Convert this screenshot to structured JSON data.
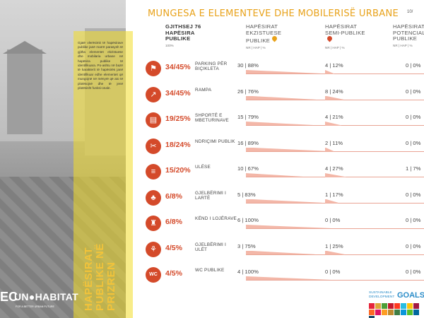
{
  "page_number": "10/",
  "title": "MUNGESA E ELEMENTEVE DHE MOBILERISË URBANE",
  "left_panel": {
    "description": "Gjatë vlerësimit të hapësirave publike janë marrë parasysh të gjitha elementet ekzistuese dhe mobilaria urbane në hapësira publike të identifikuara. Po-ashtu në bazë të karakterit të hapësirës janë identifikuar edhe elementet që mungojnë në mënyrë që ato të plotësojnë dhe të jenë plotësisht funksi-onale.",
    "vertical_title": "HAPËSIRAT PUBLIKE NË PRIZREN",
    "logo_ec": "EC",
    "logo_un": "UN●HABITAT",
    "logo_sub": "FOR A BETTER URBAN FUTURE"
  },
  "columns": [
    {
      "title": "GJITHSEJ 76 HAPËSIRA PUBLIKE",
      "sub": "100%"
    },
    {
      "title": "HAPËSIRAT EKZISTUESE PUBLIKE",
      "sub": "NR | HAP | %",
      "pin_color": "#e8a21a"
    },
    {
      "title": "HAPËSIRAT SEMI-PUBLIKE",
      "sub": "NR | HAP | %",
      "pin_color": "#d44a2a"
    },
    {
      "title": "HAPËSIRAT POTENCIALE PUBLIKE",
      "sub": "NR | HAP | %",
      "pin_color": "#2aa0c8"
    }
  ],
  "rows": [
    {
      "icon": "bicycle-icon",
      "glyph": "⚑",
      "fraction": "34/45%",
      "label": "PARKING PËR BIÇIKLETA",
      "existing": "30 | 88%",
      "semi": "4 | 12%",
      "potential": "0 | 0%",
      "existing_pct": 88,
      "semi_pct": 12
    },
    {
      "icon": "ramp-icon",
      "glyph": "↗",
      "fraction": "34/45%",
      "label": "RAMPA",
      "existing": "26 | 76%",
      "semi": "8 | 24%",
      "potential": "0 | 0%",
      "existing_pct": 76,
      "semi_pct": 24
    },
    {
      "icon": "trash-bin-icon",
      "glyph": "▤",
      "fraction": "19/25%",
      "label": "SHPORTË E MBETURINAVE",
      "existing": "15 | 79%",
      "semi": "4 | 21%",
      "potential": "0 | 0%",
      "existing_pct": 79,
      "semi_pct": 21
    },
    {
      "icon": "street-light-icon",
      "glyph": "✂",
      "fraction": "18/24%",
      "label": "NDRIÇIMI PUBLIK",
      "existing": "16 | 89%",
      "semi": "2 | 11%",
      "potential": "0 | 0%",
      "existing_pct": 89,
      "semi_pct": 11
    },
    {
      "icon": "bench-icon",
      "glyph": "≡",
      "fraction": "15/20%",
      "label": "ULËSE",
      "existing": "10 | 67%",
      "semi": "4 | 27%",
      "potential": "1 | 7%",
      "existing_pct": 67,
      "semi_pct": 27
    },
    {
      "icon": "tree-icon",
      "glyph": "♣",
      "fraction": "6/8%",
      "label": "GJELBËRIMI I LARTË",
      "existing": "5 | 83%",
      "semi": "1 | 17%",
      "potential": "0 | 0%",
      "existing_pct": 83,
      "semi_pct": 17
    },
    {
      "icon": "playground-icon",
      "glyph": "♜",
      "fraction": "6/8%",
      "label": "KËND I LOJËRAVE",
      "existing": "6 | 100%",
      "semi": "0 | 0%",
      "potential": "0 | 0%",
      "existing_pct": 100,
      "semi_pct": 0
    },
    {
      "icon": "grass-icon",
      "glyph": "⚘",
      "fraction": "4/5%",
      "label": "GJELBËRIMI I ULËT",
      "existing": "3 | 75%",
      "semi": "1 | 25%",
      "potential": "0 | 0%",
      "existing_pct": 75,
      "semi_pct": 25
    },
    {
      "icon": "wc-icon",
      "glyph": "WC",
      "fraction": "4/5%",
      "label": "WC PUBLIKE",
      "existing": "4 | 100%",
      "semi": "0 | 0%",
      "potential": "0 | 0%",
      "existing_pct": 100,
      "semi_pct": 0
    }
  ],
  "sdg": {
    "line1": "SUSTAINABLE",
    "line2": "DEVELOPMENT",
    "goals": "GOALS"
  },
  "colors": {
    "accent": "#e8a21a",
    "icon_bg": "#d44a2a",
    "bar": "#f3b7a8",
    "panel_yellow": "#f2dc28"
  }
}
